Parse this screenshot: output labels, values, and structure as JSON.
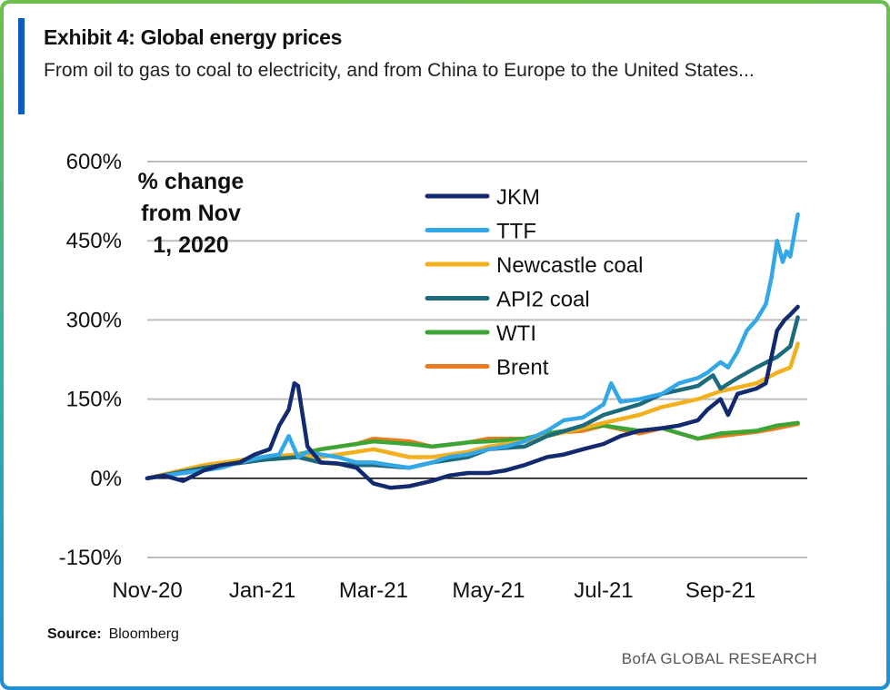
{
  "header": {
    "title": "Exhibit 4: Global energy prices",
    "subtitle": "From oil to gas to coal to electricity, and from China to Europe to the United States..."
  },
  "footer": {
    "source_label": "Source:",
    "source_value": "Bloomberg",
    "brand": "BofA GLOBAL RESEARCH"
  },
  "colors": {
    "frame_top": "#6cc04a",
    "frame_bottom": "#1f8fd6",
    "accent": "#0a5cc4",
    "JKM": "#142a6e",
    "TTF": "#34a7e6",
    "Newcastle coal": "#f2b01e",
    "API2 coal": "#1d6a7d",
    "WTI": "#3da536",
    "Brent": "#ec7b1f"
  },
  "chart_data": {
    "type": "line",
    "annotation": [
      "% change",
      "from Nov",
      "1, 2020"
    ],
    "ylim": [
      -150,
      600
    ],
    "yticks": [
      -150,
      0,
      150,
      300,
      450,
      600
    ],
    "ytick_labels": [
      "-150%",
      "0%",
      "150%",
      "300%",
      "450%",
      "600%"
    ],
    "xlim": [
      "2020-11-01",
      "2021-10-17"
    ],
    "xticks": [
      "2020-11-01",
      "2021-01-01",
      "2021-03-01",
      "2021-05-01",
      "2021-07-01",
      "2021-09-01"
    ],
    "xtick_labels": [
      "Nov-20",
      "Jan-21",
      "Mar-21",
      "May-21",
      "Jul-21",
      "Sep-21"
    ],
    "grid": "horizontal",
    "legend_position": "top-center",
    "series": [
      {
        "name": "JKM",
        "x": [
          "2020-11-01",
          "2020-11-10",
          "2020-11-20",
          "2020-12-01",
          "2020-12-10",
          "2020-12-20",
          "2020-12-28",
          "2021-01-05",
          "2021-01-10",
          "2021-01-15",
          "2021-01-18",
          "2021-01-20",
          "2021-01-25",
          "2021-02-01",
          "2021-02-10",
          "2021-02-20",
          "2021-03-01",
          "2021-03-10",
          "2021-03-20",
          "2021-04-01",
          "2021-04-10",
          "2021-04-20",
          "2021-05-01",
          "2021-05-10",
          "2021-05-20",
          "2021-06-01",
          "2021-06-10",
          "2021-06-20",
          "2021-07-01",
          "2021-07-10",
          "2021-07-20",
          "2021-08-01",
          "2021-08-10",
          "2021-08-20",
          "2021-08-25",
          "2021-09-01",
          "2021-09-05",
          "2021-09-10",
          "2021-09-15",
          "2021-09-20",
          "2021-09-25",
          "2021-10-01",
          "2021-10-05",
          "2021-10-08",
          "2021-10-12"
        ],
        "y": [
          0,
          5,
          -5,
          15,
          25,
          30,
          45,
          55,
          100,
          130,
          180,
          175,
          60,
          30,
          28,
          20,
          -10,
          -18,
          -15,
          -5,
          5,
          10,
          10,
          15,
          25,
          40,
          45,
          55,
          65,
          80,
          90,
          95,
          100,
          110,
          130,
          150,
          120,
          160,
          165,
          170,
          180,
          280,
          300,
          310,
          325
        ]
      },
      {
        "name": "TTF",
        "x": [
          "2020-11-01",
          "2020-11-10",
          "2020-11-20",
          "2020-12-01",
          "2020-12-10",
          "2020-12-20",
          "2021-01-01",
          "2021-01-10",
          "2021-01-15",
          "2021-01-20",
          "2021-01-25",
          "2021-02-01",
          "2021-02-10",
          "2021-02-20",
          "2021-03-01",
          "2021-03-10",
          "2021-03-20",
          "2021-04-01",
          "2021-04-10",
          "2021-04-20",
          "2021-05-01",
          "2021-05-10",
          "2021-05-20",
          "2021-06-01",
          "2021-06-10",
          "2021-06-20",
          "2021-07-01",
          "2021-07-05",
          "2021-07-10",
          "2021-07-20",
          "2021-08-01",
          "2021-08-10",
          "2021-08-20",
          "2021-08-25",
          "2021-09-01",
          "2021-09-05",
          "2021-09-10",
          "2021-09-15",
          "2021-09-20",
          "2021-09-25",
          "2021-09-28",
          "2021-10-01",
          "2021-10-04",
          "2021-10-06",
          "2021-10-08",
          "2021-10-10",
          "2021-10-12"
        ],
        "y": [
          0,
          5,
          10,
          15,
          20,
          30,
          40,
          45,
          80,
          40,
          50,
          45,
          40,
          30,
          30,
          25,
          20,
          30,
          40,
          45,
          55,
          60,
          70,
          90,
          110,
          115,
          140,
          180,
          145,
          150,
          160,
          180,
          190,
          200,
          220,
          210,
          240,
          280,
          300,
          330,
          380,
          450,
          410,
          430,
          420,
          460,
          500
        ]
      },
      {
        "name": "Newcastle coal",
        "x": [
          "2020-11-01",
          "2020-12-01",
          "2021-01-01",
          "2021-01-20",
          "2021-02-01",
          "2021-02-20",
          "2021-03-01",
          "2021-03-20",
          "2021-04-01",
          "2021-04-20",
          "2021-05-01",
          "2021-05-20",
          "2021-06-01",
          "2021-06-20",
          "2021-07-01",
          "2021-07-20",
          "2021-08-01",
          "2021-08-20",
          "2021-09-01",
          "2021-09-20",
          "2021-10-01",
          "2021-10-08",
          "2021-10-12"
        ],
        "y": [
          0,
          25,
          40,
          45,
          40,
          50,
          55,
          40,
          40,
          50,
          60,
          70,
          80,
          95,
          105,
          120,
          135,
          150,
          165,
          180,
          200,
          210,
          255
        ]
      },
      {
        "name": "API2 coal",
        "x": [
          "2020-11-01",
          "2020-12-01",
          "2021-01-01",
          "2021-01-20",
          "2021-02-01",
          "2021-02-20",
          "2021-03-01",
          "2021-03-20",
          "2021-04-01",
          "2021-04-20",
          "2021-05-01",
          "2021-05-20",
          "2021-06-01",
          "2021-06-20",
          "2021-07-01",
          "2021-07-20",
          "2021-08-01",
          "2021-08-20",
          "2021-08-28",
          "2021-09-01",
          "2021-09-10",
          "2021-09-20",
          "2021-10-01",
          "2021-10-08",
          "2021-10-12"
        ],
        "y": [
          0,
          20,
          35,
          40,
          30,
          25,
          25,
          20,
          30,
          40,
          55,
          60,
          80,
          100,
          120,
          140,
          160,
          175,
          195,
          170,
          190,
          210,
          230,
          250,
          305
        ]
      },
      {
        "name": "WTI",
        "x": [
          "2020-11-01",
          "2020-12-01",
          "2021-01-01",
          "2021-01-20",
          "2021-02-01",
          "2021-02-20",
          "2021-03-01",
          "2021-03-20",
          "2021-04-01",
          "2021-04-20",
          "2021-05-01",
          "2021-05-20",
          "2021-06-01",
          "2021-06-20",
          "2021-07-01",
          "2021-07-20",
          "2021-08-01",
          "2021-08-20",
          "2021-09-01",
          "2021-09-20",
          "2021-10-01",
          "2021-10-12"
        ],
        "y": [
          0,
          20,
          35,
          45,
          55,
          65,
          70,
          65,
          60,
          68,
          70,
          75,
          85,
          95,
          100,
          90,
          95,
          75,
          85,
          90,
          100,
          105
        ]
      },
      {
        "name": "Brent",
        "x": [
          "2020-11-01",
          "2020-12-01",
          "2021-01-01",
          "2021-01-20",
          "2021-02-01",
          "2021-02-20",
          "2021-03-01",
          "2021-03-20",
          "2021-04-01",
          "2021-04-20",
          "2021-05-01",
          "2021-05-20",
          "2021-06-01",
          "2021-06-20",
          "2021-07-01",
          "2021-07-20",
          "2021-08-01",
          "2021-08-20",
          "2021-09-01",
          "2021-09-20",
          "2021-10-01",
          "2021-10-12"
        ],
        "y": [
          0,
          20,
          35,
          45,
          55,
          65,
          75,
          70,
          60,
          68,
          75,
          75,
          85,
          90,
          100,
          85,
          95,
          75,
          80,
          88,
          95,
          103
        ]
      }
    ]
  }
}
